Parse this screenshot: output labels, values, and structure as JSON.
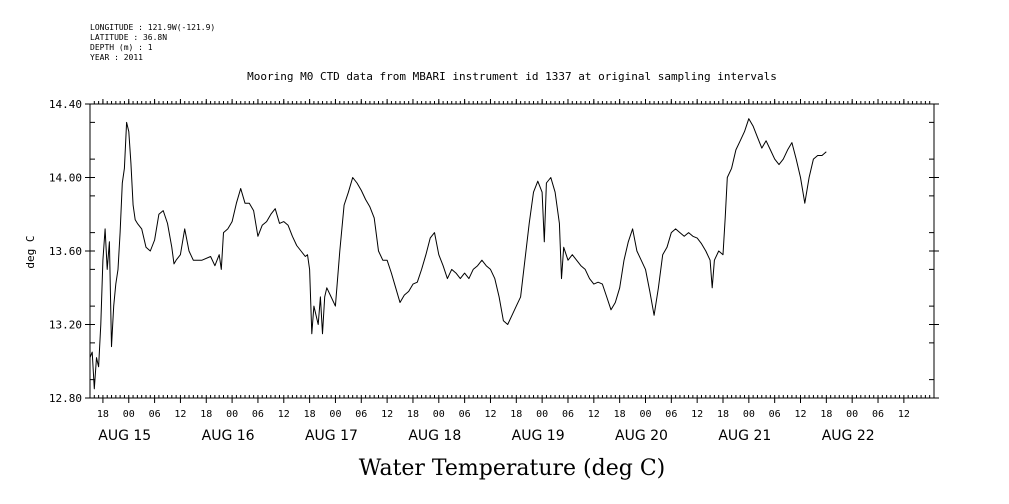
{
  "metadata": {
    "longitude": "LONGITUDE : 121.9W(-121.9)",
    "latitude": "LATITUDE : 36.8N",
    "depth": "DEPTH (m) : 1",
    "year": "YEAR : 2011"
  },
  "chart_data": {
    "type": "line",
    "title": "Mooring M0 CTD data from MBARI instrument id 1337 at original sampling intervals",
    "ylabel": "deg C",
    "xlabel": "Water Temperature (deg C)",
    "ylim": [
      12.8,
      14.4
    ],
    "yticks": [
      "12.80",
      "13.20",
      "13.60",
      "14.00",
      "14.40"
    ],
    "xlim": [
      "2011-08-14T15:00",
      "2011-08-22T19:00"
    ],
    "hour_ticks": [
      {
        "t": "2011-08-14T18:00",
        "label": "18"
      },
      {
        "t": "2011-08-15T00:00",
        "label": "00"
      },
      {
        "t": "2011-08-15T06:00",
        "label": "06"
      },
      {
        "t": "2011-08-15T12:00",
        "label": "12"
      },
      {
        "t": "2011-08-15T18:00",
        "label": "18"
      },
      {
        "t": "2011-08-16T00:00",
        "label": "00"
      },
      {
        "t": "2011-08-16T06:00",
        "label": "06"
      },
      {
        "t": "2011-08-16T12:00",
        "label": "12"
      },
      {
        "t": "2011-08-16T18:00",
        "label": "18"
      },
      {
        "t": "2011-08-17T00:00",
        "label": "00"
      },
      {
        "t": "2011-08-17T06:00",
        "label": "06"
      },
      {
        "t": "2011-08-17T12:00",
        "label": "12"
      },
      {
        "t": "2011-08-17T18:00",
        "label": "18"
      },
      {
        "t": "2011-08-18T00:00",
        "label": "00"
      },
      {
        "t": "2011-08-18T06:00",
        "label": "06"
      },
      {
        "t": "2011-08-18T12:00",
        "label": "12"
      },
      {
        "t": "2011-08-18T18:00",
        "label": "18"
      },
      {
        "t": "2011-08-19T00:00",
        "label": "00"
      },
      {
        "t": "2011-08-19T06:00",
        "label": "06"
      },
      {
        "t": "2011-08-19T12:00",
        "label": "12"
      },
      {
        "t": "2011-08-19T18:00",
        "label": "18"
      },
      {
        "t": "2011-08-20T00:00",
        "label": "00"
      },
      {
        "t": "2011-08-20T06:00",
        "label": "06"
      },
      {
        "t": "2011-08-20T12:00",
        "label": "12"
      },
      {
        "t": "2011-08-20T18:00",
        "label": "18"
      },
      {
        "t": "2011-08-21T00:00",
        "label": "00"
      },
      {
        "t": "2011-08-21T06:00",
        "label": "06"
      },
      {
        "t": "2011-08-21T12:00",
        "label": "12"
      },
      {
        "t": "2011-08-21T18:00",
        "label": "18"
      },
      {
        "t": "2011-08-22T00:00",
        "label": "00"
      },
      {
        "t": "2011-08-22T06:00",
        "label": "06"
      },
      {
        "t": "2011-08-22T12:00",
        "label": "12"
      }
    ],
    "day_labels": [
      {
        "t": "2011-08-15T00:00",
        "label": "AUG 15"
      },
      {
        "t": "2011-08-16T00:00",
        "label": "AUG 16"
      },
      {
        "t": "2011-08-17T00:00",
        "label": "AUG 17"
      },
      {
        "t": "2011-08-18T00:00",
        "label": "AUG 18"
      },
      {
        "t": "2011-08-19T00:00",
        "label": "AUG 19"
      },
      {
        "t": "2011-08-20T00:00",
        "label": "AUG 20"
      },
      {
        "t": "2011-08-21T00:00",
        "label": "AUG 21"
      },
      {
        "t": "2011-08-22T00:00",
        "label": "AUG 22"
      }
    ],
    "grid": false,
    "series": [
      {
        "points": [
          [
            "2011-08-14T15:00",
            13.02
          ],
          [
            "2011-08-14T15:30",
            13.05
          ],
          [
            "2011-08-14T16:00",
            12.85
          ],
          [
            "2011-08-14T16:30",
            13.02
          ],
          [
            "2011-08-14T17:00",
            12.97
          ],
          [
            "2011-08-14T17:30",
            13.2
          ],
          [
            "2011-08-14T18:00",
            13.55
          ],
          [
            "2011-08-14T18:30",
            13.72
          ],
          [
            "2011-08-14T19:00",
            13.5
          ],
          [
            "2011-08-14T19:30",
            13.65
          ],
          [
            "2011-08-14T20:00",
            13.08
          ],
          [
            "2011-08-14T20:30",
            13.3
          ],
          [
            "2011-08-14T21:00",
            13.42
          ],
          [
            "2011-08-14T21:30",
            13.5
          ],
          [
            "2011-08-14T22:00",
            13.7
          ],
          [
            "2011-08-14T22:30",
            13.97
          ],
          [
            "2011-08-14T23:00",
            14.05
          ],
          [
            "2011-08-14T23:30",
            14.3
          ],
          [
            "2011-08-15T00:00",
            14.25
          ],
          [
            "2011-08-15T00:30",
            14.08
          ],
          [
            "2011-08-15T01:00",
            13.85
          ],
          [
            "2011-08-15T01:30",
            13.77
          ],
          [
            "2011-08-15T02:00",
            13.75
          ],
          [
            "2011-08-15T03:00",
            13.72
          ],
          [
            "2011-08-15T04:00",
            13.62
          ],
          [
            "2011-08-15T05:00",
            13.6
          ],
          [
            "2011-08-15T06:00",
            13.66
          ],
          [
            "2011-08-15T07:00",
            13.8
          ],
          [
            "2011-08-15T08:00",
            13.82
          ],
          [
            "2011-08-15T09:00",
            13.75
          ],
          [
            "2011-08-15T10:00",
            13.62
          ],
          [
            "2011-08-15T10:30",
            13.53
          ],
          [
            "2011-08-15T11:00",
            13.55
          ],
          [
            "2011-08-15T12:00",
            13.58
          ],
          [
            "2011-08-15T13:00",
            13.72
          ],
          [
            "2011-08-15T14:00",
            13.6
          ],
          [
            "2011-08-15T15:00",
            13.55
          ],
          [
            "2011-08-15T17:00",
            13.55
          ],
          [
            "2011-08-15T19:00",
            13.57
          ],
          [
            "2011-08-15T20:00",
            13.52
          ],
          [
            "2011-08-15T21:00",
            13.58
          ],
          [
            "2011-08-15T21:30",
            13.5
          ],
          [
            "2011-08-15T22:00",
            13.7
          ],
          [
            "2011-08-15T23:00",
            13.72
          ],
          [
            "2011-08-16T00:00",
            13.76
          ],
          [
            "2011-08-16T01:00",
            13.86
          ],
          [
            "2011-08-16T02:00",
            13.94
          ],
          [
            "2011-08-16T03:00",
            13.86
          ],
          [
            "2011-08-16T04:00",
            13.86
          ],
          [
            "2011-08-16T05:00",
            13.82
          ],
          [
            "2011-08-16T06:00",
            13.68
          ],
          [
            "2011-08-16T07:00",
            13.74
          ],
          [
            "2011-08-16T08:00",
            13.76
          ],
          [
            "2011-08-16T09:00",
            13.8
          ],
          [
            "2011-08-16T10:00",
            13.83
          ],
          [
            "2011-08-16T11:00",
            13.75
          ],
          [
            "2011-08-16T12:00",
            13.76
          ],
          [
            "2011-08-16T13:00",
            13.74
          ],
          [
            "2011-08-16T14:00",
            13.68
          ],
          [
            "2011-08-16T15:00",
            13.63
          ],
          [
            "2011-08-16T16:00",
            13.6
          ],
          [
            "2011-08-16T17:00",
            13.57
          ],
          [
            "2011-08-16T17:30",
            13.58
          ],
          [
            "2011-08-16T18:00",
            13.5
          ],
          [
            "2011-08-16T18:30",
            13.15
          ],
          [
            "2011-08-16T19:00",
            13.3
          ],
          [
            "2011-08-16T20:00",
            13.2
          ],
          [
            "2011-08-16T20:30",
            13.35
          ],
          [
            "2011-08-16T21:00",
            13.15
          ],
          [
            "2011-08-16T21:30",
            13.35
          ],
          [
            "2011-08-16T22:00",
            13.4
          ],
          [
            "2011-08-16T23:00",
            13.35
          ],
          [
            "2011-08-17T00:00",
            13.3
          ],
          [
            "2011-08-17T01:00",
            13.6
          ],
          [
            "2011-08-17T02:00",
            13.85
          ],
          [
            "2011-08-17T03:00",
            13.92
          ],
          [
            "2011-08-17T04:00",
            14.0
          ],
          [
            "2011-08-17T05:00",
            13.97
          ],
          [
            "2011-08-17T06:00",
            13.93
          ],
          [
            "2011-08-17T07:00",
            13.88
          ],
          [
            "2011-08-17T08:00",
            13.84
          ],
          [
            "2011-08-17T09:00",
            13.78
          ],
          [
            "2011-08-17T10:00",
            13.6
          ],
          [
            "2011-08-17T11:00",
            13.55
          ],
          [
            "2011-08-17T12:00",
            13.55
          ],
          [
            "2011-08-17T13:00",
            13.48
          ],
          [
            "2011-08-17T14:00",
            13.4
          ],
          [
            "2011-08-17T15:00",
            13.32
          ],
          [
            "2011-08-17T16:00",
            13.36
          ],
          [
            "2011-08-17T17:00",
            13.38
          ],
          [
            "2011-08-17T18:00",
            13.42
          ],
          [
            "2011-08-17T19:00",
            13.43
          ],
          [
            "2011-08-17T20:00",
            13.5
          ],
          [
            "2011-08-17T21:00",
            13.58
          ],
          [
            "2011-08-17T22:00",
            13.67
          ],
          [
            "2011-08-17T23:00",
            13.7
          ],
          [
            "2011-08-18T00:00",
            13.58
          ],
          [
            "2011-08-18T01:00",
            13.52
          ],
          [
            "2011-08-18T02:00",
            13.45
          ],
          [
            "2011-08-18T03:00",
            13.5
          ],
          [
            "2011-08-18T04:00",
            13.48
          ],
          [
            "2011-08-18T05:00",
            13.45
          ],
          [
            "2011-08-18T06:00",
            13.48
          ],
          [
            "2011-08-18T07:00",
            13.45
          ],
          [
            "2011-08-18T08:00",
            13.5
          ],
          [
            "2011-08-18T09:00",
            13.52
          ],
          [
            "2011-08-18T10:00",
            13.55
          ],
          [
            "2011-08-18T11:00",
            13.52
          ],
          [
            "2011-08-18T12:00",
            13.5
          ],
          [
            "2011-08-18T13:00",
            13.45
          ],
          [
            "2011-08-18T14:00",
            13.35
          ],
          [
            "2011-08-18T15:00",
            13.22
          ],
          [
            "2011-08-18T16:00",
            13.2
          ],
          [
            "2011-08-18T17:00",
            13.25
          ],
          [
            "2011-08-18T18:00",
            13.3
          ],
          [
            "2011-08-18T19:00",
            13.35
          ],
          [
            "2011-08-18T20:00",
            13.55
          ],
          [
            "2011-08-18T21:00",
            13.75
          ],
          [
            "2011-08-18T22:00",
            13.92
          ],
          [
            "2011-08-18T23:00",
            13.98
          ],
          [
            "2011-08-19T00:00",
            13.92
          ],
          [
            "2011-08-19T00:30",
            13.65
          ],
          [
            "2011-08-19T01:00",
            13.97
          ],
          [
            "2011-08-19T02:00",
            14.0
          ],
          [
            "2011-08-19T03:00",
            13.92
          ],
          [
            "2011-08-19T04:00",
            13.75
          ],
          [
            "2011-08-19T04:30",
            13.45
          ],
          [
            "2011-08-19T05:00",
            13.62
          ],
          [
            "2011-08-19T06:00",
            13.55
          ],
          [
            "2011-08-19T07:00",
            13.58
          ],
          [
            "2011-08-19T08:00",
            13.55
          ],
          [
            "2011-08-19T09:00",
            13.52
          ],
          [
            "2011-08-19T10:00",
            13.5
          ],
          [
            "2011-08-19T11:00",
            13.45
          ],
          [
            "2011-08-19T12:00",
            13.42
          ],
          [
            "2011-08-19T13:00",
            13.43
          ],
          [
            "2011-08-19T14:00",
            13.42
          ],
          [
            "2011-08-19T15:00",
            13.35
          ],
          [
            "2011-08-19T16:00",
            13.28
          ],
          [
            "2011-08-19T17:00",
            13.32
          ],
          [
            "2011-08-19T18:00",
            13.4
          ],
          [
            "2011-08-19T19:00",
            13.55
          ],
          [
            "2011-08-19T20:00",
            13.65
          ],
          [
            "2011-08-19T21:00",
            13.72
          ],
          [
            "2011-08-19T22:00",
            13.6
          ],
          [
            "2011-08-19T23:00",
            13.55
          ],
          [
            "2011-08-20T00:00",
            13.5
          ],
          [
            "2011-08-20T01:00",
            13.38
          ],
          [
            "2011-08-20T02:00",
            13.25
          ],
          [
            "2011-08-20T03:00",
            13.4
          ],
          [
            "2011-08-20T04:00",
            13.58
          ],
          [
            "2011-08-20T05:00",
            13.62
          ],
          [
            "2011-08-20T06:00",
            13.7
          ],
          [
            "2011-08-20T07:00",
            13.72
          ],
          [
            "2011-08-20T08:00",
            13.7
          ],
          [
            "2011-08-20T09:00",
            13.68
          ],
          [
            "2011-08-20T10:00",
            13.7
          ],
          [
            "2011-08-20T11:00",
            13.68
          ],
          [
            "2011-08-20T12:00",
            13.67
          ],
          [
            "2011-08-20T13:00",
            13.64
          ],
          [
            "2011-08-20T14:00",
            13.6
          ],
          [
            "2011-08-20T15:00",
            13.55
          ],
          [
            "2011-08-20T15:30",
            13.4
          ],
          [
            "2011-08-20T16:00",
            13.55
          ],
          [
            "2011-08-20T17:00",
            13.6
          ],
          [
            "2011-08-20T18:00",
            13.58
          ],
          [
            "2011-08-20T18:30",
            13.78
          ],
          [
            "2011-08-20T19:00",
            14.0
          ],
          [
            "2011-08-20T20:00",
            14.05
          ],
          [
            "2011-08-20T21:00",
            14.15
          ],
          [
            "2011-08-20T22:00",
            14.2
          ],
          [
            "2011-08-20T23:00",
            14.25
          ],
          [
            "2011-08-21T00:00",
            14.32
          ],
          [
            "2011-08-21T01:00",
            14.28
          ],
          [
            "2011-08-21T02:00",
            14.22
          ],
          [
            "2011-08-21T03:00",
            14.16
          ],
          [
            "2011-08-21T04:00",
            14.2
          ],
          [
            "2011-08-21T05:00",
            14.15
          ],
          [
            "2011-08-21T06:00",
            14.1
          ],
          [
            "2011-08-21T07:00",
            14.07
          ],
          [
            "2011-08-21T08:00",
            14.1
          ],
          [
            "2011-08-21T09:00",
            14.15
          ],
          [
            "2011-08-21T10:00",
            14.19
          ],
          [
            "2011-08-21T11:00",
            14.1
          ],
          [
            "2011-08-21T12:00",
            14.0
          ],
          [
            "2011-08-21T13:00",
            13.86
          ],
          [
            "2011-08-21T14:00",
            14.0
          ],
          [
            "2011-08-21T15:00",
            14.1
          ],
          [
            "2011-08-21T16:00",
            14.12
          ],
          [
            "2011-08-21T17:00",
            14.12
          ],
          [
            "2011-08-21T18:00",
            14.14
          ]
        ]
      }
    ]
  }
}
